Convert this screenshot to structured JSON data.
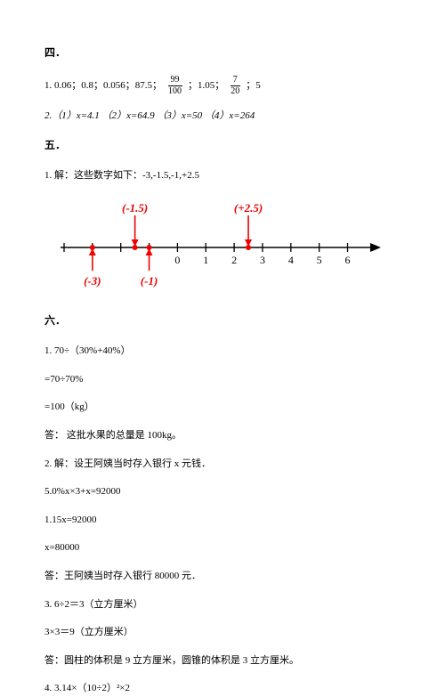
{
  "section4": {
    "title": "四．",
    "line1_parts": {
      "p1": "1. 0.06；0.8；0.056；87.5；",
      "frac1_num": "99",
      "frac1_den": "100",
      "p2": "；1.05；",
      "frac2_num": "7",
      "frac2_den": "20",
      "p3": "；5"
    },
    "line2": "2.（1）x=4.1 （2）x=64.9 （3）x=50 （4）x=264"
  },
  "section5": {
    "title": "五．",
    "line1": "1. 解：这些数字如下：-3,-1.5,-1,+2.5",
    "number_line": {
      "xmin": -4,
      "xmax": 6.8,
      "ticks": [
        -4,
        -3,
        -2,
        -1,
        0,
        1,
        2,
        3,
        4,
        5,
        6
      ],
      "tick_labels_below": [
        "0",
        "1",
        "2",
        "3",
        "4",
        "5",
        "6"
      ],
      "tick_label_positions": [
        0,
        1,
        2,
        3,
        4,
        5,
        6
      ],
      "top_points": [
        {
          "x": -1.5,
          "label": "(-1.5)"
        },
        {
          "x": 2.5,
          "label": "(+2.5)"
        }
      ],
      "bottom_points": [
        {
          "x": -3,
          "label": "(-3)"
        },
        {
          "x": -1,
          "label": "(-1)"
        }
      ],
      "axis_color": "#000000",
      "point_color": "#f00000",
      "label_red": "#e80000",
      "font_size": 12
    }
  },
  "section6": {
    "title": "六．",
    "lines": [
      "1. 70÷（30%+40%）",
      "=70÷70%",
      "=100（kg）",
      "答： 这批水果的总量是 100kg。",
      "2. 解：设王阿姨当时存入银行 x 元钱．",
      "5.0%x×3+x=92000",
      "1.15x=92000",
      "x=80000",
      "答：王阿姨当时存入银行 80000 元．",
      "3. 6÷2＝3（立方厘米）",
      "3×3＝9（立方厘米）",
      "答：圆柱的体积是 9 立方厘米，圆锥的体积是 3 立方厘米。",
      "4. 3.14×（10÷2）²×2"
    ]
  }
}
